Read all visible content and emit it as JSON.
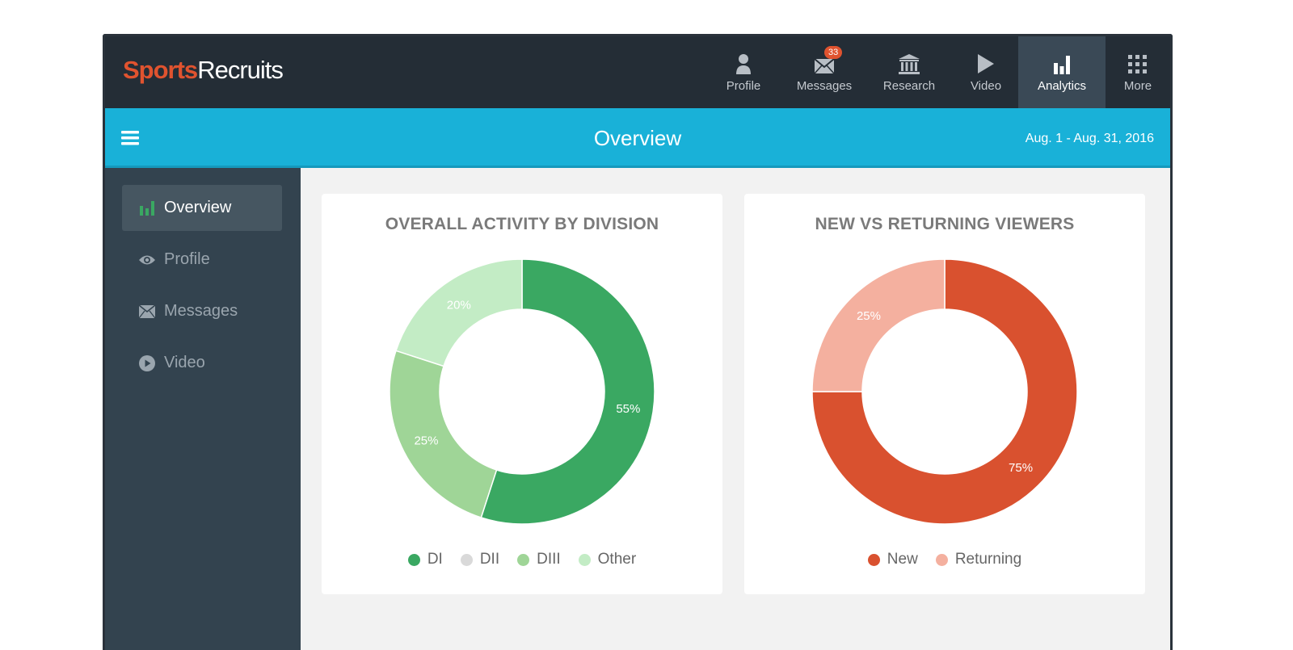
{
  "app": {
    "logo_part1": "Sports",
    "logo_part2": "Recruits"
  },
  "nav": {
    "items": [
      {
        "label": "Profile",
        "icon": "person-icon"
      },
      {
        "label": "Messages",
        "icon": "envelope-icon",
        "badge": "33"
      },
      {
        "label": "Research",
        "icon": "bank-icon"
      },
      {
        "label": "Video",
        "icon": "play-icon"
      },
      {
        "label": "Analytics",
        "icon": "bar-chart-icon",
        "active": true
      },
      {
        "label": "More",
        "icon": "grid-icon"
      }
    ]
  },
  "header": {
    "title": "Overview",
    "date_range": "Aug. 1 - Aug. 31, 2016"
  },
  "sidebar": {
    "items": [
      {
        "label": "Overview",
        "icon": "bar-chart-icon",
        "active": true
      },
      {
        "label": "Profile",
        "icon": "eye-icon"
      },
      {
        "label": "Messages",
        "icon": "envelope-icon"
      },
      {
        "label": "Video",
        "icon": "play-circle-icon"
      }
    ]
  },
  "colors": {
    "accent_blue": "#19b1d8",
    "dark_nav": "#242d36",
    "sidebar": "#33434f",
    "brand_orange": "#e0532f"
  },
  "chart_data": [
    {
      "type": "pie",
      "donut": true,
      "title": "OVERALL ACTIVITY BY DIVISION",
      "categories": [
        "DI",
        "DII",
        "DIII",
        "Other"
      ],
      "values": [
        55,
        0,
        25,
        20
      ],
      "labels": [
        "55%",
        "",
        "25%",
        "20%"
      ],
      "colors": [
        "#3aa862",
        "#d9d9d9",
        "#9fd597",
        "#c3ecc5"
      ],
      "legend": "bottom"
    },
    {
      "type": "pie",
      "donut": true,
      "title": "NEW VS RETURNING VIEWERS",
      "categories": [
        "New",
        "Returning"
      ],
      "values": [
        75,
        25
      ],
      "labels": [
        "75%",
        "25%"
      ],
      "colors": [
        "#d9512f",
        "#f4b09f"
      ],
      "legend": "bottom"
    }
  ]
}
